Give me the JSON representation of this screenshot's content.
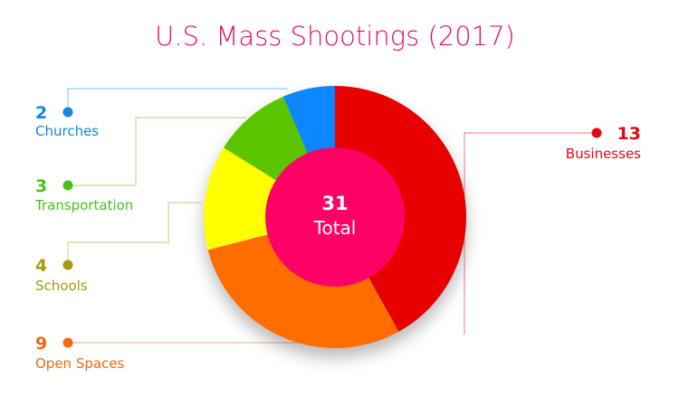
{
  "chart_data": {
    "type": "donut",
    "title": "U.S. Mass Shootings (2017)",
    "total": {
      "value": "31",
      "label": "Total"
    },
    "slices": [
      {
        "label": "Businesses",
        "value": 13,
        "color": "#e60000",
        "label_color": "#e30613"
      },
      {
        "label": "Open Spaces",
        "value": 9,
        "color": "#ff6c00",
        "label_color": "#f26a10"
      },
      {
        "label": "Schools",
        "value": 4,
        "color": "#ffff00",
        "label_color": "#a39a0f"
      },
      {
        "label": "Transportation",
        "value": 3,
        "color": "#5cc500",
        "label_color": "#4cbf1f"
      },
      {
        "label": "Churches",
        "value": 2,
        "color": "#0f87ff",
        "label_color": "#1486e8"
      }
    ],
    "center_color": "#ff0066",
    "title_color": "#e0115f"
  }
}
